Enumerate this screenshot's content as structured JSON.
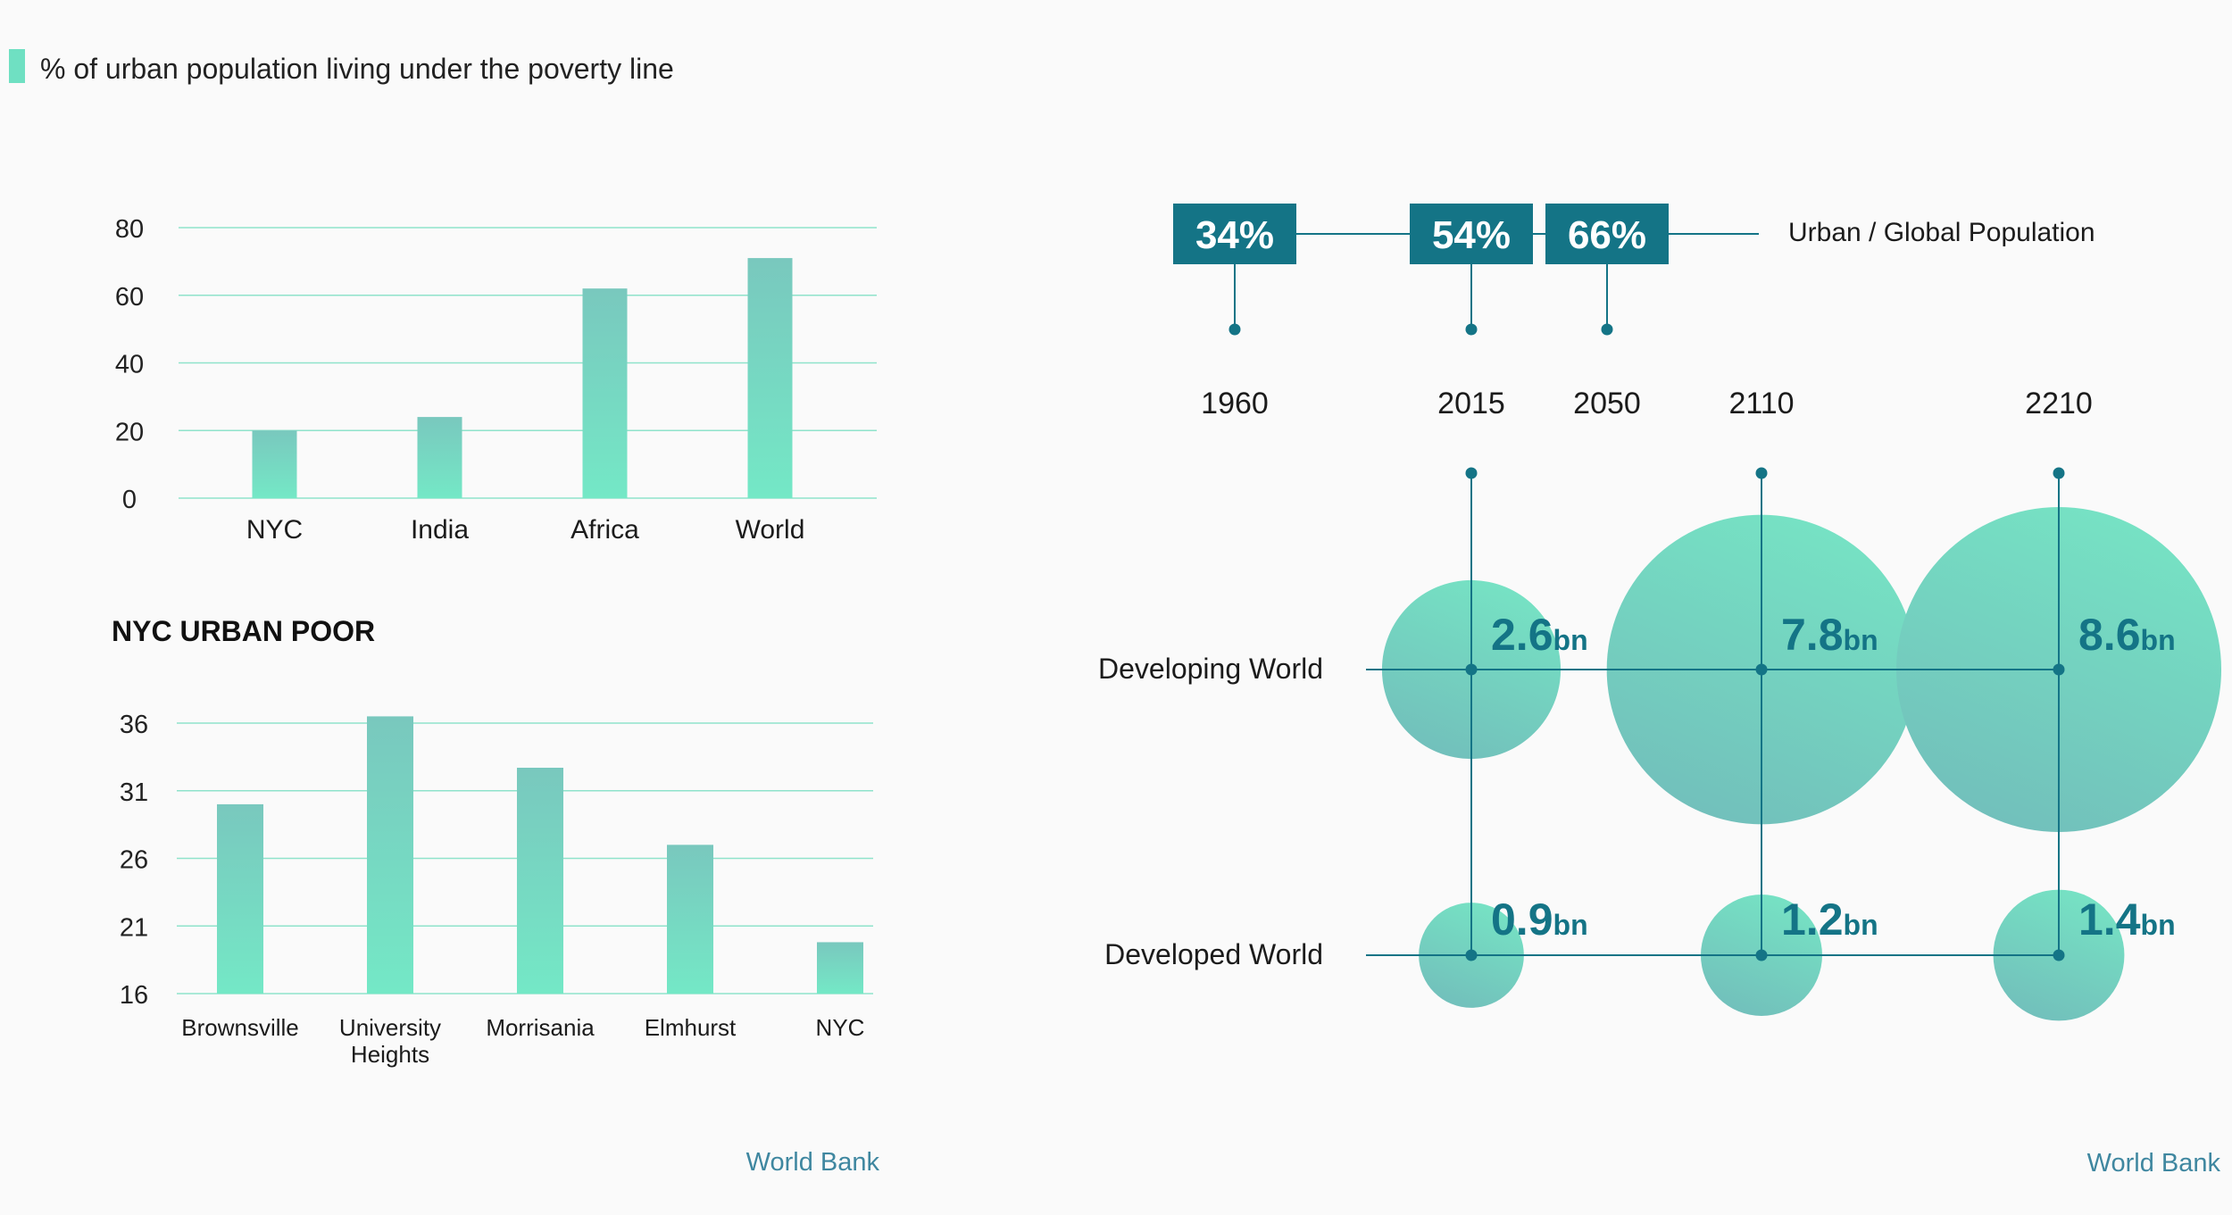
{
  "legend": {
    "label": "% of urban population living under the poverty line",
    "color": "#6fe0c2"
  },
  "colors": {
    "bar_top": "#79c8be",
    "bar_bottom": "#74e8c6",
    "grid": "#8fe3cb",
    "accent": "#147486",
    "bubble_a": "#76e3c4",
    "bubble_b": "#72bfbb",
    "source": "#3f87a0"
  },
  "chart_data": [
    {
      "type": "bar",
      "title": "",
      "categories": [
        "NYC",
        "India",
        "Africa",
        "World"
      ],
      "values": [
        20,
        24,
        62,
        71
      ],
      "ylim": [
        0,
        80
      ],
      "yticks": [
        "0",
        "20",
        "40",
        "60",
        "80"
      ],
      "xlabel": "",
      "ylabel": "% of urban population living under the poverty line",
      "grid": true
    },
    {
      "type": "bar",
      "title": "NYC URBAN POOR",
      "categories": [
        "Brownsville",
        "University Heights",
        "Morrisania",
        "Elmhurst",
        "NYC"
      ],
      "values": [
        30,
        36.5,
        32.7,
        27,
        19.8
      ],
      "ylim": [
        16,
        36
      ],
      "yticks": [
        "16",
        "21",
        "26",
        "31",
        "36"
      ],
      "xlabel": "",
      "ylabel": "",
      "grid": true
    },
    {
      "type": "scatter",
      "title": "Urban / Global Population",
      "timeline_years": [
        "1960",
        "2015",
        "2050",
        "2110",
        "2210"
      ],
      "urban_share": [
        {
          "year": "1960",
          "label": "34%"
        },
        {
          "year": "2015",
          "label": "54%"
        },
        {
          "year": "2050",
          "label": "66%"
        }
      ],
      "rows": [
        "Developing World",
        "Developed World"
      ],
      "series": [
        {
          "name": "Developing World",
          "points": [
            {
              "year": "2015",
              "value": 2.6,
              "label": "2.6",
              "unit": "bn"
            },
            {
              "year": "2110",
              "value": 7.8,
              "label": "7.8",
              "unit": "bn"
            },
            {
              "year": "2210",
              "value": 8.6,
              "label": "8.6",
              "unit": "bn"
            }
          ]
        },
        {
          "name": "Developed World",
          "points": [
            {
              "year": "2015",
              "value": 0.9,
              "label": "0.9",
              "unit": "bn"
            },
            {
              "year": "2110",
              "value": 1.2,
              "label": "1.2",
              "unit": "bn"
            },
            {
              "year": "2210",
              "value": 1.4,
              "label": "1.4",
              "unit": "bn"
            }
          ]
        }
      ]
    }
  ],
  "sources": {
    "left": "World Bank",
    "right": "World Bank"
  }
}
